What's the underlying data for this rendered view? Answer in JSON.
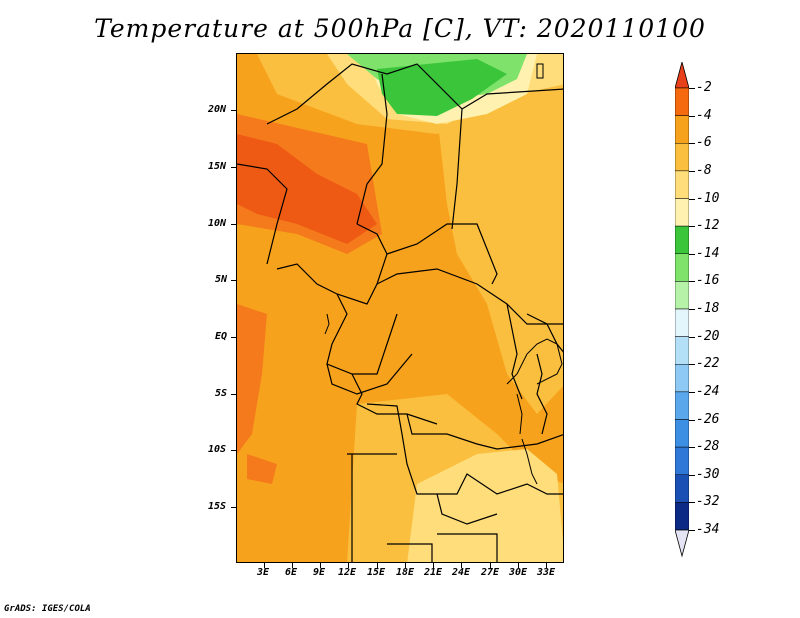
{
  "title": "Temperature at 500hPa [C], VT: 2020110100",
  "credit": "GrADS: IGES/COLA",
  "map": {
    "y_axis_labels": [
      "20N",
      "15N",
      "10N",
      "5N",
      "EQ",
      "5S",
      "10S",
      "15S"
    ],
    "x_axis_labels": [
      "3E",
      "6E",
      "9E",
      "12E",
      "15E",
      "18E",
      "21E",
      "24E",
      "27E",
      "30E",
      "33E"
    ],
    "region_colors": {
      "base": "#f7a21c",
      "warm": "#f47a1c",
      "hot": "#ee5a14",
      "mild": "#fbbf3f",
      "cool": "#fedd7a",
      "pale": "#fff2b0",
      "green_light": "#7ee26b",
      "green": "#3bc53b",
      "border": "#000000"
    }
  },
  "colorbar": {
    "labels": [
      "-2",
      "-4",
      "-6",
      "-8",
      "-10",
      "-12",
      "-14",
      "-16",
      "-18",
      "-20",
      "-22",
      "-24",
      "-26",
      "-28",
      "-30",
      "-32",
      "-34"
    ],
    "colors": [
      "#e8401a",
      "#f66a0f",
      "#f7a21c",
      "#fbbf3f",
      "#fedd7a",
      "#fff2b0",
      "#3bc53b",
      "#7ee26b",
      "#b6f2a8",
      "#e2f6fb",
      "#b3e0f6",
      "#8ec8f4",
      "#5aa7ec",
      "#3d8fe4",
      "#2f78d8",
      "#1a50b4",
      "#0c2a85"
    ],
    "end_cap_top": "#e8401a",
    "end_cap_bottom": "#e4e4f4"
  }
}
